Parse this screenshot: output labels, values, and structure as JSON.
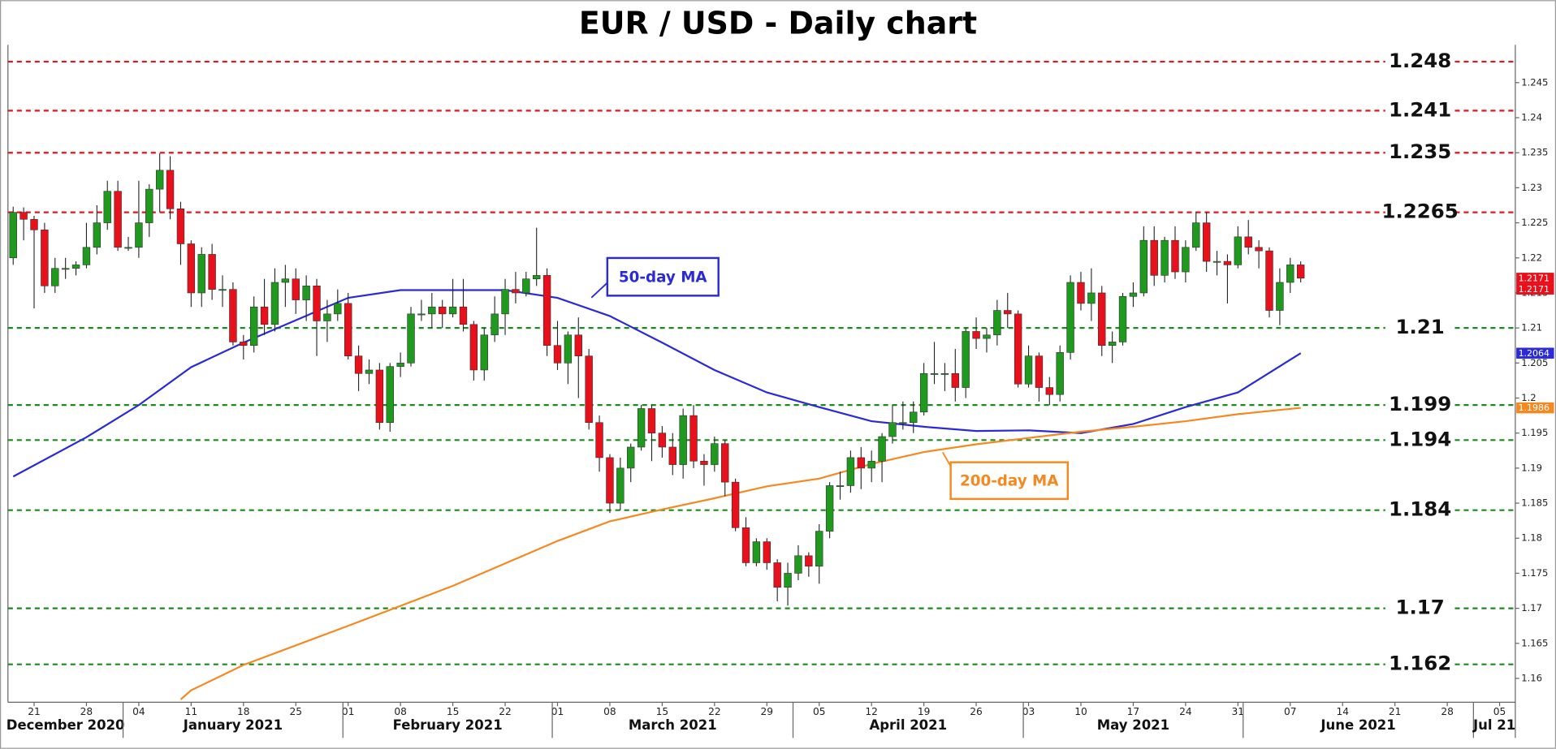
{
  "chart_data": {
    "type": "candlestick",
    "title": "EUR / USD - Daily chart",
    "up_color": "#1f9a1f",
    "down_color": "#e8101a",
    "x": [
      "2020-12-17",
      "2020-12-18",
      "2020-12-21",
      "2020-12-22",
      "2020-12-23",
      "2020-12-24",
      "2020-12-25",
      "2020-12-28",
      "2020-12-29",
      "2020-12-30",
      "2020-12-31",
      "2021-01-01",
      "2021-01-04",
      "2021-01-05",
      "2021-01-06",
      "2021-01-07",
      "2021-01-08",
      "2021-01-11",
      "2021-01-12",
      "2021-01-13",
      "2021-01-14",
      "2021-01-15",
      "2021-01-18",
      "2021-01-19",
      "2021-01-20",
      "2021-01-21",
      "2021-01-22",
      "2021-01-25",
      "2021-01-26",
      "2021-01-27",
      "2021-01-28",
      "2021-01-29",
      "2021-02-01",
      "2021-02-02",
      "2021-02-03",
      "2021-02-04",
      "2021-02-05",
      "2021-02-08",
      "2021-02-09",
      "2021-02-10",
      "2021-02-11",
      "2021-02-12",
      "2021-02-15",
      "2021-02-16",
      "2021-02-17",
      "2021-02-18",
      "2021-02-19",
      "2021-02-22",
      "2021-02-23",
      "2021-02-24",
      "2021-02-25",
      "2021-02-26",
      "2021-03-01",
      "2021-03-02",
      "2021-03-03",
      "2021-03-04",
      "2021-03-05",
      "2021-03-08",
      "2021-03-09",
      "2021-03-10",
      "2021-03-11",
      "2021-03-12",
      "2021-03-15",
      "2021-03-16",
      "2021-03-17",
      "2021-03-18",
      "2021-03-19",
      "2021-03-22",
      "2021-03-23",
      "2021-03-24",
      "2021-03-25",
      "2021-03-26",
      "2021-03-29",
      "2021-03-30",
      "2021-03-31",
      "2021-04-01",
      "2021-04-02",
      "2021-04-05",
      "2021-04-06",
      "2021-04-07",
      "2021-04-08",
      "2021-04-09",
      "2021-04-12",
      "2021-04-13",
      "2021-04-14",
      "2021-04-15",
      "2021-04-16",
      "2021-04-19",
      "2021-04-20",
      "2021-04-21",
      "2021-04-22",
      "2021-04-23",
      "2021-04-26",
      "2021-04-27",
      "2021-04-28",
      "2021-04-29",
      "2021-04-30",
      "2021-05-03",
      "2021-05-04",
      "2021-05-05",
      "2021-05-06",
      "2021-05-07",
      "2021-05-10",
      "2021-05-11",
      "2021-05-12",
      "2021-05-13",
      "2021-05-14",
      "2021-05-17",
      "2021-05-18",
      "2021-05-19",
      "2021-05-20",
      "2021-05-21",
      "2021-05-24",
      "2021-05-25",
      "2021-05-26",
      "2021-05-27",
      "2021-05-28",
      "2021-05-31",
      "2021-06-01",
      "2021-06-02",
      "2021-06-03",
      "2021-06-04",
      "2021-06-07",
      "2021-06-08"
    ],
    "open": [
      1.22,
      1.2265,
      1.2255,
      1.224,
      1.216,
      1.2185,
      1.2185,
      1.219,
      1.2215,
      1.225,
      1.2295,
      1.2215,
      1.2215,
      1.225,
      1.2298,
      1.2325,
      1.227,
      1.222,
      1.215,
      1.2205,
      1.2155,
      1.2155,
      1.208,
      1.2075,
      1.213,
      1.2105,
      1.2165,
      1.217,
      1.214,
      1.216,
      1.211,
      1.212,
      1.2135,
      1.206,
      1.2035,
      1.204,
      1.1965,
      1.2045,
      1.205,
      1.212,
      1.212,
      1.213,
      1.212,
      1.213,
      1.2105,
      1.204,
      1.209,
      1.212,
      1.2155,
      1.215,
      1.217,
      1.2175,
      1.2075,
      1.205,
      1.209,
      1.206,
      1.1965,
      1.1915,
      1.185,
      1.19,
      1.193,
      1.1985,
      1.195,
      1.193,
      1.1905,
      1.1975,
      1.191,
      1.1905,
      1.1935,
      1.188,
      1.1815,
      1.1765,
      1.1795,
      1.1765,
      1.173,
      1.175,
      1.1775,
      1.176,
      1.181,
      1.1875,
      1.1875,
      1.1915,
      1.19,
      1.191,
      1.1945,
      1.1965,
      1.1965,
      1.198,
      1.2035,
      1.2035,
      1.2035,
      1.2015,
      1.2095,
      1.2085,
      1.209,
      1.2125,
      1.212,
      1.202,
      1.206,
      1.2015,
      1.2005,
      1.2065,
      1.2165,
      1.2135,
      1.215,
      1.2075,
      1.208,
      1.2145,
      1.215,
      1.2225,
      1.2175,
      1.2225,
      1.218,
      1.2215,
      1.225,
      1.2195,
      1.2195,
      1.219,
      1.223,
      1.2215,
      1.221,
      1.2125,
      1.2165,
      1.219
    ],
    "high": [
      1.2273,
      1.2272,
      1.226,
      1.225,
      1.22,
      1.22,
      1.2195,
      1.225,
      1.2275,
      1.231,
      1.231,
      1.223,
      1.231,
      1.2305,
      1.2349,
      1.2345,
      1.228,
      1.2225,
      1.2215,
      1.222,
      1.2175,
      1.2165,
      1.209,
      1.2145,
      1.217,
      1.2185,
      1.219,
      1.2185,
      1.2175,
      1.217,
      1.214,
      1.2155,
      1.215,
      1.2075,
      1.2055,
      1.205,
      1.205,
      1.2065,
      1.213,
      1.214,
      1.215,
      1.214,
      1.217,
      1.217,
      1.211,
      1.21,
      1.2145,
      1.217,
      1.218,
      1.218,
      1.2243,
      1.2185,
      1.211,
      1.2095,
      1.2115,
      1.207,
      1.1975,
      1.192,
      1.1915,
      1.1935,
      1.199,
      1.199,
      1.196,
      1.195,
      1.1985,
      1.199,
      1.192,
      1.1945,
      1.194,
      1.1885,
      1.183,
      1.18,
      1.18,
      1.177,
      1.1765,
      1.179,
      1.178,
      1.182,
      1.188,
      1.1895,
      1.1925,
      1.193,
      1.1925,
      1.195,
      1.199,
      1.1995,
      1.1995,
      1.205,
      1.208,
      1.205,
      1.207,
      1.21,
      1.2115,
      1.21,
      1.214,
      1.215,
      1.2125,
      1.2075,
      1.2065,
      1.203,
      1.2075,
      1.2175,
      1.218,
      1.2185,
      1.216,
      1.2095,
      1.215,
      1.2165,
      1.2245,
      1.2245,
      1.223,
      1.2245,
      1.2225,
      1.2266,
      1.2265,
      1.221,
      1.2205,
      1.2245,
      1.2254,
      1.2225,
      1.2215,
      1.2185,
      1.22,
      1.2195
    ],
    "low": [
      1.219,
      1.2225,
      1.2128,
      1.215,
      1.215,
      1.217,
      1.2175,
      1.2185,
      1.2205,
      1.224,
      1.221,
      1.221,
      1.22,
      1.223,
      1.2265,
      1.2255,
      1.219,
      1.213,
      1.213,
      1.214,
      1.213,
      1.2075,
      1.2055,
      1.2065,
      1.209,
      1.2095,
      1.213,
      1.212,
      1.211,
      1.206,
      1.208,
      1.211,
      1.2055,
      1.201,
      1.202,
      1.1955,
      1.1952,
      1.203,
      1.2045,
      1.211,
      1.21,
      1.21,
      1.2115,
      1.2095,
      1.2025,
      1.2025,
      1.208,
      1.209,
      1.2135,
      1.2145,
      1.216,
      1.206,
      1.204,
      1.202,
      1.2,
      1.1955,
      1.1895,
      1.1836,
      1.184,
      1.188,
      1.1925,
      1.191,
      1.1915,
      1.189,
      1.1885,
      1.19,
      1.1875,
      1.1895,
      1.186,
      1.181,
      1.176,
      1.176,
      1.1755,
      1.171,
      1.1704,
      1.174,
      1.1745,
      1.1735,
      1.18,
      1.1855,
      1.1865,
      1.187,
      1.188,
      1.188,
      1.1935,
      1.1955,
      1.195,
      1.1975,
      1.202,
      1.201,
      1.1995,
      1.2,
      1.207,
      1.2065,
      1.2075,
      1.21,
      1.2015,
      1.2015,
      1.1995,
      1.199,
      1.1995,
      1.2055,
      1.2125,
      1.211,
      1.206,
      1.205,
      1.2075,
      1.213,
      1.2145,
      1.216,
      1.2165,
      1.217,
      1.2165,
      1.221,
      1.218,
      1.2175,
      1.2135,
      1.2185,
      1.2205,
      1.2185,
      1.2115,
      1.2104,
      1.215,
      1.2165
    ],
    "close": [
      1.2265,
      1.2255,
      1.224,
      1.216,
      1.2185,
      1.2185,
      1.219,
      1.2215,
      1.225,
      1.2295,
      1.2215,
      1.2215,
      1.225,
      1.2298,
      1.2325,
      1.227,
      1.222,
      1.215,
      1.2205,
      1.2155,
      1.2155,
      1.208,
      1.2075,
      1.213,
      1.2105,
      1.2165,
      1.217,
      1.214,
      1.216,
      1.211,
      1.212,
      1.2135,
      1.206,
      1.2035,
      1.204,
      1.1965,
      1.2045,
      1.205,
      1.212,
      1.212,
      1.213,
      1.212,
      1.213,
      1.2105,
      1.204,
      1.209,
      1.212,
      1.2155,
      1.215,
      1.217,
      1.2175,
      1.2075,
      1.205,
      1.209,
      1.206,
      1.1965,
      1.1915,
      1.185,
      1.19,
      1.193,
      1.1985,
      1.195,
      1.193,
      1.1905,
      1.1975,
      1.191,
      1.1905,
      1.1935,
      1.188,
      1.1815,
      1.1765,
      1.1795,
      1.1765,
      1.173,
      1.175,
      1.1775,
      1.176,
      1.181,
      1.1875,
      1.1875,
      1.1915,
      1.19,
      1.191,
      1.1945,
      1.1965,
      1.1965,
      1.198,
      1.2035,
      1.2035,
      1.2035,
      1.2015,
      1.2095,
      1.2085,
      1.209,
      1.2125,
      1.212,
      1.202,
      1.206,
      1.2015,
      1.2005,
      1.2065,
      1.2165,
      1.2135,
      1.215,
      1.2075,
      1.208,
      1.2145,
      1.215,
      1.2225,
      1.2175,
      1.2225,
      1.218,
      1.2215,
      1.225,
      1.2195,
      1.2195,
      1.219,
      1.223,
      1.2215,
      1.221,
      1.2125,
      1.2165,
      1.219,
      1.2171
    ],
    "series": [
      {
        "name": "50-day MA",
        "color": "#2a2ad8",
        "x": [
          "2020-12-17",
          "2020-12-28",
          "2021-01-04",
          "2021-01-11",
          "2021-01-18",
          "2021-02-01",
          "2021-02-08",
          "2021-02-22",
          "2021-03-01",
          "2021-03-08",
          "2021-03-15",
          "2021-03-22",
          "2021-03-29",
          "2021-04-05",
          "2021-04-12",
          "2021-04-19",
          "2021-04-26",
          "2021-05-03",
          "2021-05-10",
          "2021-05-17",
          "2021-05-24",
          "2021-05-31",
          "2021-06-08"
        ],
        "values": [
          1.1888,
          1.1944,
          1.199,
          1.2044,
          1.2079,
          1.2143,
          1.2154,
          1.2154,
          1.2143,
          1.2117,
          1.2079,
          1.204,
          1.2008,
          1.1987,
          1.1967,
          1.1959,
          1.1953,
          1.1954,
          1.195,
          1.1963,
          1.1987,
          1.2008,
          1.2064
        ]
      },
      {
        "name": "200-day MA",
        "color": "#f5891f",
        "x": [
          "2021-01-08",
          "2021-01-11",
          "2021-01-18",
          "2021-02-01",
          "2021-02-15",
          "2021-03-01",
          "2021-03-08",
          "2021-03-15",
          "2021-03-22",
          "2021-03-29",
          "2021-04-05",
          "2021-04-12",
          "2021-04-19",
          "2021-04-26",
          "2021-05-03",
          "2021-05-10",
          "2021-05-17",
          "2021-05-24",
          "2021-05-31",
          "2021-06-08"
        ],
        "values": [
          1.157,
          1.1583,
          1.1619,
          1.1675,
          1.1732,
          1.1796,
          1.1824,
          1.1841,
          1.1857,
          1.1874,
          1.1885,
          1.1906,
          1.1923,
          1.1934,
          1.1943,
          1.1952,
          1.1959,
          1.1967,
          1.1977,
          1.1986
        ]
      }
    ],
    "levels": [
      {
        "value": 1.248,
        "color": "#e8141c"
      },
      {
        "value": 1.241,
        "color": "#e8141c"
      },
      {
        "value": 1.235,
        "color": "#e8141c"
      },
      {
        "value": 1.2265,
        "color": "#e8141c"
      },
      {
        "value": 1.21,
        "color": "#1a8a1a"
      },
      {
        "value": 1.199,
        "color": "#1a8a1a"
      },
      {
        "value": 1.194,
        "color": "#1a8a1a"
      },
      {
        "value": 1.184,
        "color": "#1a8a1a"
      },
      {
        "value": 1.17,
        "color": "#1a8a1a"
      },
      {
        "value": 1.162,
        "color": "#1a8a1a"
      }
    ],
    "price_tags": [
      {
        "value": 1.2171,
        "color": "#e8101a"
      },
      {
        "value": 1.2171,
        "color": "#e8101a"
      },
      {
        "value": 1.2064,
        "color": "#2a2ad8"
      },
      {
        "value": 1.1986,
        "color": "#f5891f"
      }
    ],
    "xlim": [
      "2020-12-17",
      "2021-07-06"
    ],
    "xticks": [
      {
        "value": "2020-12-21",
        "label": "21"
      },
      {
        "value": "2020-12-28",
        "label": "28"
      },
      {
        "value": "2021-01-04",
        "label": "04"
      },
      {
        "value": "2021-01-11",
        "label": "11"
      },
      {
        "value": "2021-01-18",
        "label": "18"
      },
      {
        "value": "2021-01-25",
        "label": "25"
      },
      {
        "value": "2021-02-01",
        "label": "01"
      },
      {
        "value": "2021-02-08",
        "label": "08"
      },
      {
        "value": "2021-02-15",
        "label": "15"
      },
      {
        "value": "2021-02-22",
        "label": "22"
      },
      {
        "value": "2021-03-01",
        "label": "01"
      },
      {
        "value": "2021-03-08",
        "label": "08"
      },
      {
        "value": "2021-03-15",
        "label": "15"
      },
      {
        "value": "2021-03-22",
        "label": "22"
      },
      {
        "value": "2021-03-29",
        "label": "29"
      },
      {
        "value": "2021-04-05",
        "label": "05"
      },
      {
        "value": "2021-04-12",
        "label": "12"
      },
      {
        "value": "2021-04-19",
        "label": "19"
      },
      {
        "value": "2021-04-26",
        "label": "26"
      },
      {
        "value": "2021-05-03",
        "label": "03"
      },
      {
        "value": "2021-05-10",
        "label": "10"
      },
      {
        "value": "2021-05-17",
        "label": "17"
      },
      {
        "value": "2021-05-24",
        "label": "24"
      },
      {
        "value": "2021-05-31",
        "label": "31"
      },
      {
        "value": "2021-06-07",
        "label": "07"
      },
      {
        "value": "2021-06-14",
        "label": "14"
      },
      {
        "value": "2021-06-21",
        "label": "21"
      },
      {
        "value": "2021-06-28",
        "label": "28"
      },
      {
        "value": "2021-07-05",
        "label": "05"
      }
    ],
    "month_labels": [
      {
        "value": "2020-12",
        "label": "December 2020"
      },
      {
        "value": "2021-01",
        "label": "January 2021"
      },
      {
        "value": "2021-02",
        "label": "February 2021"
      },
      {
        "value": "2021-03",
        "label": "March 2021"
      },
      {
        "value": "2021-04",
        "label": "April 2021"
      },
      {
        "value": "2021-05",
        "label": "May 2021"
      },
      {
        "value": "2021-06",
        "label": "June 2021"
      },
      {
        "value": "2021-07",
        "label": "Jul 21"
      }
    ],
    "ylim": [
      1.1566,
      1.2504
    ],
    "yticks": [
      1.16,
      1.165,
      1.17,
      1.175,
      1.18,
      1.185,
      1.19,
      1.195,
      1.2,
      1.205,
      1.21,
      1.215,
      1.22,
      1.225,
      1.23,
      1.235,
      1.24,
      1.245
    ]
  }
}
